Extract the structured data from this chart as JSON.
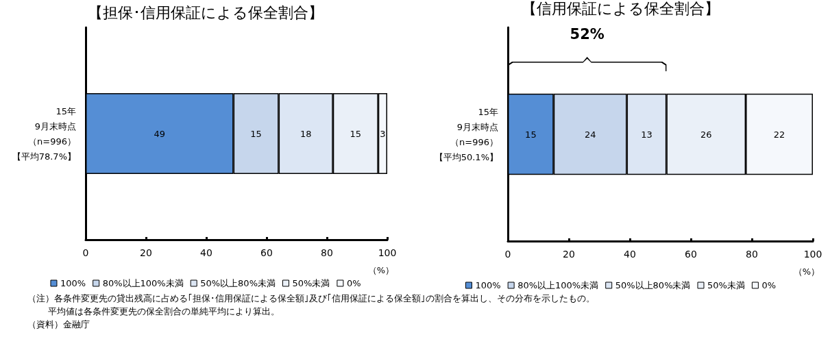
{
  "chart_data": [
    {
      "type": "bar",
      "orientation": "horizontal",
      "stacked": true,
      "title": "【担保･信用保証による保全割合】",
      "xlabel": "（%）",
      "categories": [
        "15年9月末時点（n=996）【平均78.7%】"
      ],
      "series": [
        {
          "name": "100%",
          "color": "#558ed5",
          "values": [
            49
          ]
        },
        {
          "name": "80%以上100%未満",
          "color": "#c6d6ec",
          "values": [
            15
          ]
        },
        {
          "name": "50%以上80%未満",
          "color": "#dce6f4",
          "values": [
            18
          ]
        },
        {
          "name": "50%未満",
          "color": "#eaf0f8",
          "values": [
            15
          ]
        },
        {
          "name": "0%",
          "color": "#f5f8fc",
          "values": [
            3
          ]
        }
      ],
      "xlim": [
        0,
        100
      ],
      "xticks": [
        0,
        20,
        40,
        60,
        80,
        100
      ],
      "data_labels": true,
      "legend": "bottom",
      "grid": false,
      "annotations": [
        "（注）各条件変更先の貸出残高に占める｢担保･信用保証による保全額｣及び｢信用保証による保全額｣の割合を算出し、その分布を示したもの。",
        "平均値は各条件変更先の保全割合の単純平均により算出。",
        "（資料）金融庁"
      ]
    },
    {
      "type": "bar",
      "orientation": "horizontal",
      "stacked": true,
      "title": "【信用保証による保全割合】",
      "xlabel": "（%）",
      "categories": [
        "15年9月末時点（n=996）【平均50.1%】"
      ],
      "series": [
        {
          "name": "100%",
          "color": "#558ed5",
          "values": [
            15
          ]
        },
        {
          "name": "80%以上100%未満",
          "color": "#c6d6ec",
          "values": [
            24
          ]
        },
        {
          "name": "50%以上80%未満",
          "color": "#dce6f4",
          "values": [
            13
          ]
        },
        {
          "name": "50%未満",
          "color": "#eaf0f8",
          "values": [
            26
          ]
        },
        {
          "name": "0%",
          "color": "#f5f8fc",
          "values": [
            22
          ]
        }
      ],
      "xlim": [
        0,
        100
      ],
      "xticks": [
        0,
        20,
        40,
        60,
        80,
        100
      ],
      "data_labels": true,
      "legend": "bottom",
      "grid": false,
      "annotations": [
        "52%"
      ]
    }
  ]
}
